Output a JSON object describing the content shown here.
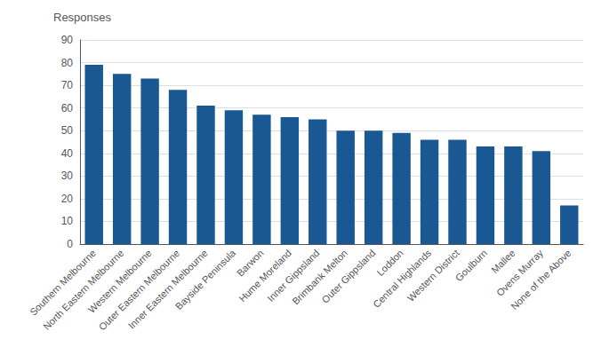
{
  "chart_data": {
    "type": "bar",
    "ylabel": "Responses",
    "categories": [
      "Southern Melbourne",
      "North Eastern Melbourne",
      "Western Melbourne",
      "Outer Eastern Melbourne",
      "Inner Eastern Melbourne",
      "Bayside Peninsula",
      "Barwon",
      "Hume Moreland",
      "Inner Gippsland",
      "Brimbank Melton",
      "Outer Gippsland",
      "Loddon",
      "Central Highlands",
      "Western District",
      "Goulburn",
      "Mallee",
      "Ovens Murray",
      "None of the Above"
    ],
    "values": [
      79,
      75,
      73,
      68,
      61,
      59,
      57,
      56,
      55,
      50,
      50,
      49,
      46,
      46,
      43,
      43,
      41,
      17
    ],
    "color": "#1a5894",
    "ylim": [
      0,
      90
    ],
    "yticks": [
      0,
      10,
      20,
      30,
      40,
      50,
      60,
      70,
      80,
      90
    ],
    "grid": true
  }
}
